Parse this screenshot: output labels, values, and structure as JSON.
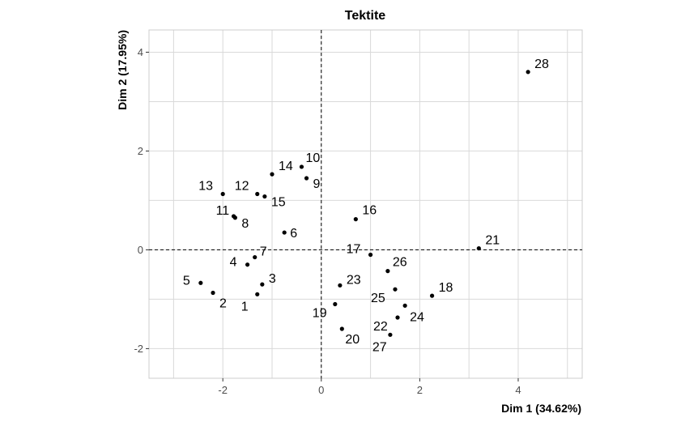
{
  "chart_data": {
    "type": "scatter",
    "title": "Tektite",
    "xlabel": "Dim 1 (34.62%)",
    "ylabel": "Dim 2 (17.95%)",
    "xlim": [
      -3.5,
      5.3
    ],
    "ylim": [
      -2.6,
      4.45
    ],
    "xticks": [
      -2,
      0,
      2,
      4
    ],
    "yticks": [
      -2,
      0,
      2,
      4
    ],
    "grid": true,
    "reference_lines": {
      "x": 0,
      "y": 0,
      "style": "dashed"
    },
    "points": [
      {
        "label": "1",
        "x": -1.3,
        "y": -0.9
      },
      {
        "label": "2",
        "x": -2.2,
        "y": -0.87
      },
      {
        "label": "3",
        "x": -1.2,
        "y": -0.7
      },
      {
        "label": "4",
        "x": -1.5,
        "y": -0.3
      },
      {
        "label": "5",
        "x": -2.45,
        "y": -0.67
      },
      {
        "label": "6",
        "x": -0.75,
        "y": 0.35
      },
      {
        "label": "7",
        "x": -1.35,
        "y": -0.15
      },
      {
        "label": "8",
        "x": -1.75,
        "y": 0.65
      },
      {
        "label": "9",
        "x": -0.3,
        "y": 1.45
      },
      {
        "label": "10",
        "x": -0.4,
        "y": 1.68
      },
      {
        "label": "11",
        "x": -1.78,
        "y": 0.68
      },
      {
        "label": "12",
        "x": -1.3,
        "y": 1.13
      },
      {
        "label": "13",
        "x": -2.0,
        "y": 1.13
      },
      {
        "label": "14",
        "x": -1.0,
        "y": 1.53
      },
      {
        "label": "15",
        "x": -1.15,
        "y": 1.08
      },
      {
        "label": "16",
        "x": 0.7,
        "y": 0.62
      },
      {
        "label": "17",
        "x": 1.0,
        "y": -0.1
      },
      {
        "label": "18",
        "x": 2.25,
        "y": -0.93
      },
      {
        "label": "19",
        "x": 0.28,
        "y": -1.1
      },
      {
        "label": "20",
        "x": 0.42,
        "y": -1.6
      },
      {
        "label": "21",
        "x": 3.2,
        "y": 0.03
      },
      {
        "label": "22",
        "x": 1.55,
        "y": -1.37
      },
      {
        "label": "23",
        "x": 0.38,
        "y": -0.72
      },
      {
        "label": "24",
        "x": 1.7,
        "y": -1.13
      },
      {
        "label": "25",
        "x": 1.5,
        "y": -0.8
      },
      {
        "label": "26",
        "x": 1.35,
        "y": -0.43
      },
      {
        "label": "27",
        "x": 1.4,
        "y": -1.72
      },
      {
        "label": "28",
        "x": 4.2,
        "y": 3.6
      }
    ]
  }
}
